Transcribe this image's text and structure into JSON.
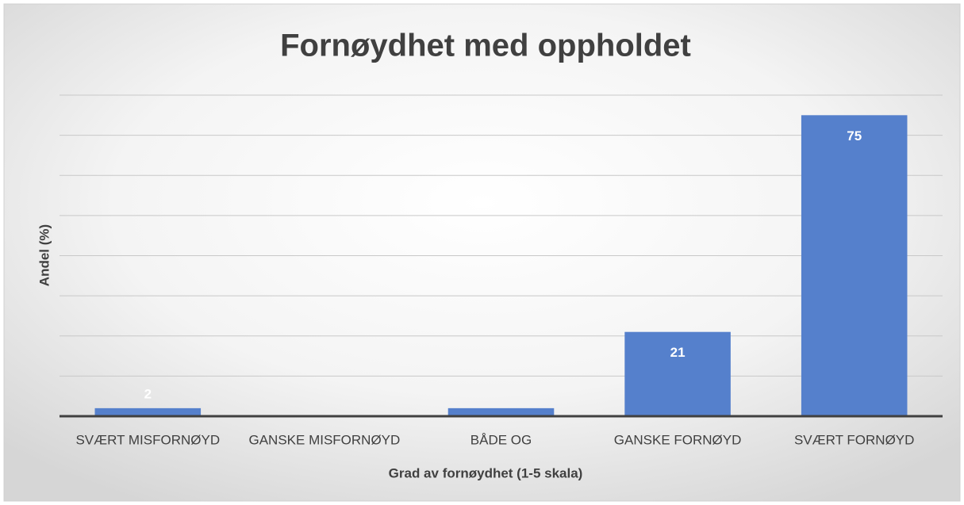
{
  "chart_data": {
    "type": "bar",
    "title": "Fornøydhet med oppholdet",
    "x_label": "Grad av fornøydhet (1-5 skala)",
    "y_label": "Andel (%)",
    "categories": [
      "SVÆRT MISFORNØYD",
      "GANSKE MISFORNØYD",
      "BÅDE OG",
      "GANSKE FORNØYD",
      "SVÆRT FORNØYD"
    ],
    "values": [
      2,
      0,
      2,
      21,
      75
    ],
    "value_labels": [
      "2",
      null,
      null,
      "21",
      "75"
    ],
    "color": "#5580cc",
    "ylim": [
      0,
      80
    ],
    "yticks": [
      0,
      10,
      20,
      30,
      40,
      50,
      60,
      70,
      80
    ],
    "grid": true
  }
}
